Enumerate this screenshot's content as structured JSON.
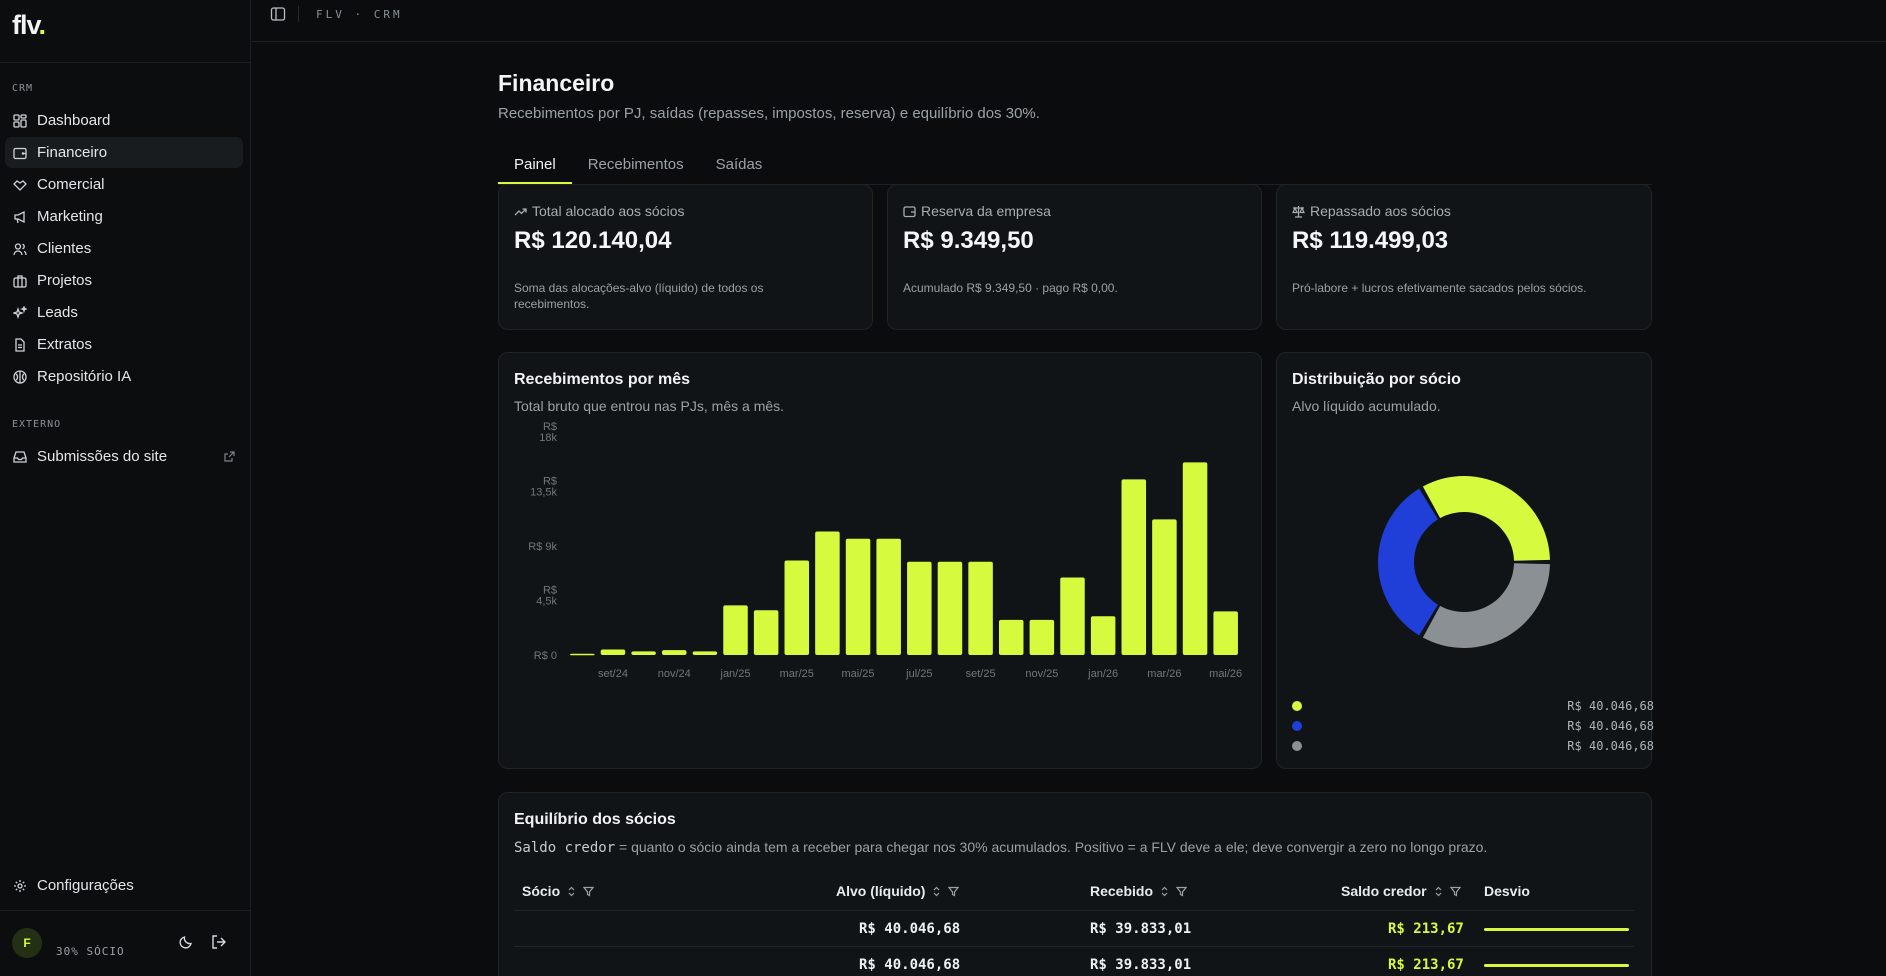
{
  "app": {
    "logo_text": "flv",
    "logo_dot": ".",
    "breadcrumb": "FLV · CRM"
  },
  "sidebar": {
    "section_crm": "CRM",
    "items": [
      {
        "label": "Dashboard",
        "icon": "grid-icon"
      },
      {
        "label": "Financeiro",
        "icon": "wallet-icon",
        "active": true
      },
      {
        "label": "Comercial",
        "icon": "handshake-icon"
      },
      {
        "label": "Marketing",
        "icon": "megaphone-icon"
      },
      {
        "label": "Clientes",
        "icon": "users-icon"
      },
      {
        "label": "Projetos",
        "icon": "briefcase-icon"
      },
      {
        "label": "Leads",
        "icon": "sparkles-icon"
      },
      {
        "label": "Extratos",
        "icon": "file-icon"
      },
      {
        "label": "Repositório IA",
        "icon": "brain-icon"
      }
    ],
    "section_externo": "EXTERNO",
    "external_item": {
      "label": "Submissões do site",
      "icon": "inbox-icon"
    },
    "settings_label": "Configurações",
    "user": {
      "initial": "F",
      "role": "30% SÓCIO"
    }
  },
  "page": {
    "title": "Financeiro",
    "subtitle": "Recebimentos por PJ, saídas (repasses, impostos, reserva) e equilíbrio dos 30%.",
    "tabs": [
      {
        "label": "Painel",
        "active": true
      },
      {
        "label": "Recebimentos"
      },
      {
        "label": "Saídas"
      }
    ]
  },
  "stats": [
    {
      "label": "Total alocado aos sócios",
      "value": "R$ 120.140,04",
      "note": "Soma das alocações-alvo (líquido) de todos os recebimentos.",
      "icon": "trending-up-icon"
    },
    {
      "label": "Reserva da empresa",
      "value": "R$ 9.349,50",
      "note": "Acumulado R$ 9.349,50 · pago R$ 0,00.",
      "icon": "wallet-icon"
    },
    {
      "label": "Repassado aos sócios",
      "value": "R$ 119.499,03",
      "note": "Pró-labore + lucros efetivamente sacados pelos sócios.",
      "icon": "scale-icon"
    }
  ],
  "bar_card": {
    "title": "Recebimentos por mês",
    "subtitle": "Total bruto que entrou nas PJs, mês a mês."
  },
  "donut_card": {
    "title": "Distribuição por sócio",
    "subtitle": "Alvo líquido acumulado.",
    "legend": [
      {
        "name": "",
        "value": "R$ 40.046,68",
        "color": "#d6fb3e"
      },
      {
        "name": "",
        "value": "R$ 40.046,68",
        "color": "#1f3fd8"
      },
      {
        "name": "",
        "value": "R$ 40.046,68",
        "color": "#8b9094"
      }
    ]
  },
  "chart_data": [
    {
      "type": "bar",
      "categories": [
        "ago/24",
        "set/24",
        "out/24",
        "nov/24",
        "dez/24",
        "jan/25",
        "fev/25",
        "mar/25",
        "abr/25",
        "mai/25",
        "jun/25",
        "jul/25",
        "ago/25",
        "set/25",
        "out/25",
        "nov/25",
        "dez/25",
        "jan/26",
        "fev/26",
        "mar/26",
        "abr/26",
        "mai/26"
      ],
      "x_tick_labels": [
        "set/24",
        "nov/24",
        "jan/25",
        "mar/25",
        "mai/25",
        "jul/25",
        "set/25",
        "nov/25",
        "jan/26",
        "mar/26",
        "mai/26"
      ],
      "values": [
        100,
        450,
        300,
        400,
        300,
        4100,
        3700,
        7800,
        10200,
        9600,
        9600,
        7700,
        7700,
        7700,
        2900,
        2900,
        6400,
        3200,
        14500,
        11200,
        15900,
        3600
      ],
      "y_ticks": [
        {
          "value": 0,
          "label": "R$ 0"
        },
        {
          "value": 4500,
          "label": "R$ 4,5k"
        },
        {
          "value": 9000,
          "label": "R$ 9k"
        },
        {
          "value": 13500,
          "label": "R$ 13,5k"
        },
        {
          "value": 18000,
          "label": "R$ 18k"
        }
      ],
      "ylim": [
        0,
        18000
      ],
      "color": "#d6fb3e",
      "grid": false
    },
    {
      "type": "pie",
      "variant": "donut",
      "series": [
        {
          "value": 40046.68,
          "color": "#d6fb3e"
        },
        {
          "value": 40046.68,
          "color": "#8b9094"
        },
        {
          "value": 40046.68,
          "color": "#1f3fd8"
        }
      ]
    }
  ],
  "balance": {
    "title": "Equilíbrio dos sócios",
    "desc_code": "Saldo credor",
    "desc_text": " = quanto o sócio ainda tem a receber para chegar nos 30% acumulados. Positivo = a FLV deve a ele; deve convergir a zero no longo prazo.",
    "columns": [
      "Sócio",
      "Alvo (líquido)",
      "Recebido",
      "Saldo credor",
      "Desvio"
    ],
    "rows": [
      {
        "socio": "",
        "alvo": "R$ 40.046,68",
        "recebido": "R$ 39.833,01",
        "saldo": "R$ 213,67"
      },
      {
        "socio": "",
        "alvo": "R$ 40.046,68",
        "recebido": "R$ 39.833,01",
        "saldo": "R$ 213,67"
      }
    ]
  }
}
